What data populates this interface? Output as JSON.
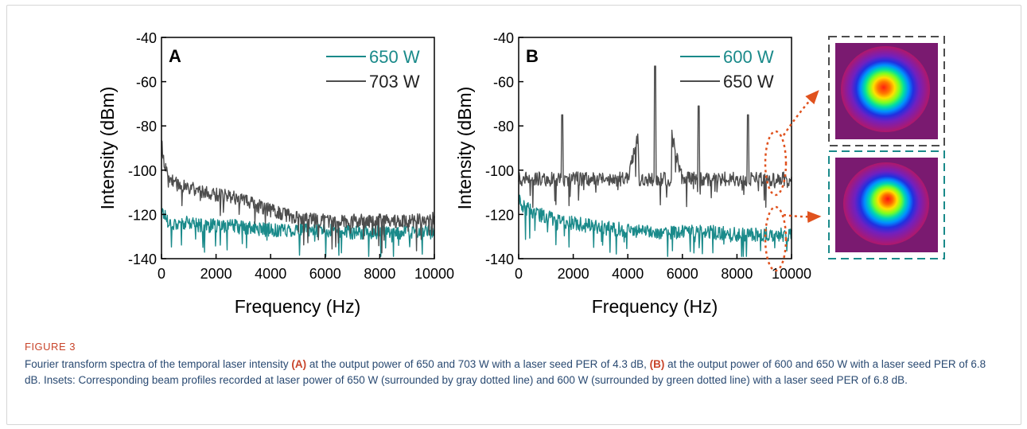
{
  "figure": {
    "label": "FIGURE 3",
    "caption_segments": [
      {
        "text": "Fourier transform spectra of the temporal laser intensity ",
        "bold": false
      },
      {
        "text": "(A)",
        "bold": true
      },
      {
        "text": " at the output power of 650 and 703 W with a laser seed PER of 4.3 dB, ",
        "bold": false
      },
      {
        "text": "(B)",
        "bold": true
      },
      {
        "text": " at the output power of 600 and 650 W with a laser seed PER of 6.8 dB. Insets: Corresponding beam profiles recorded at laser power of 650 W (surrounded by gray dotted line) and 600 W (surrounded by green dotted line) with a laser seed PER of 6.8 dB.",
        "bold": false
      }
    ]
  },
  "colors": {
    "teal": "#1a8a8a",
    "gray": "#4d4d4d",
    "annotation": "#e0521e",
    "caption_text": "#2a4a72",
    "caption_label": "#c8442a"
  },
  "chart_data": [
    {
      "type": "line",
      "panel_label": "A",
      "xlabel": "Frequency (Hz)",
      "ylabel": "Intensity (dBm)",
      "xlim": [
        0,
        10000
      ],
      "ylim": [
        -140,
        -40
      ],
      "xticks": [
        0,
        2000,
        4000,
        6000,
        8000,
        10000
      ],
      "yticks": [
        -40,
        -60,
        -80,
        -100,
        -120,
        -140
      ],
      "legend_position": "top-right",
      "series": [
        {
          "name": "650 W",
          "color": "#1a8a8a",
          "x": [
            0,
            100,
            300,
            600,
            1000,
            1500,
            2000,
            2500,
            3000,
            4000,
            5000,
            6000,
            7000,
            8000,
            9000,
            10000
          ],
          "y": [
            -118,
            -120,
            -124,
            -124,
            -124,
            -125,
            -125,
            -125,
            -126,
            -127,
            -127,
            -127,
            -128,
            -128,
            -128,
            -128
          ]
        },
        {
          "name": "703 W",
          "color": "#4d4d4d",
          "x": [
            0,
            50,
            150,
            300,
            500,
            1000,
            1500,
            2000,
            2500,
            3000,
            3500,
            4000,
            4500,
            5000,
            6000,
            7000,
            8000,
            9000,
            10000
          ],
          "y": [
            -85,
            -95,
            -100,
            -103,
            -106,
            -108,
            -110,
            -111,
            -112,
            -113,
            -116,
            -118,
            -120,
            -122,
            -123,
            -123,
            -123,
            -123,
            -122
          ]
        }
      ]
    },
    {
      "type": "line",
      "panel_label": "B",
      "xlabel": "Frequency (Hz)",
      "ylabel": "Intensity (dBm)",
      "xlim": [
        0,
        10000
      ],
      "ylim": [
        -140,
        -40
      ],
      "xticks": [
        0,
        2000,
        4000,
        6000,
        8000,
        10000
      ],
      "yticks": [
        -40,
        -60,
        -80,
        -100,
        -120,
        -140
      ],
      "legend_position": "top-right",
      "series": [
        {
          "name": "600 W",
          "color": "#1a8a8a",
          "x": [
            0,
            100,
            500,
            1000,
            2000,
            3000,
            4000,
            5000,
            6000,
            7000,
            8000,
            9000,
            10000
          ],
          "y": [
            -112,
            -116,
            -119,
            -121,
            -124,
            -126,
            -127,
            -128,
            -128,
            -128,
            -129,
            -129,
            -129
          ]
        },
        {
          "name": "650 W",
          "color": "#4d4d4d",
          "x": [
            0,
            1000,
            1600,
            2000,
            3000,
            4000,
            5000,
            6000,
            6600,
            7000,
            8000,
            8400,
            9000,
            10000
          ],
          "y": [
            -104,
            -104,
            -75,
            -104,
            -104,
            -104,
            -53,
            -104,
            -71,
            -104,
            -104,
            -75,
            -104,
            -104
          ]
        }
      ]
    }
  ]
}
